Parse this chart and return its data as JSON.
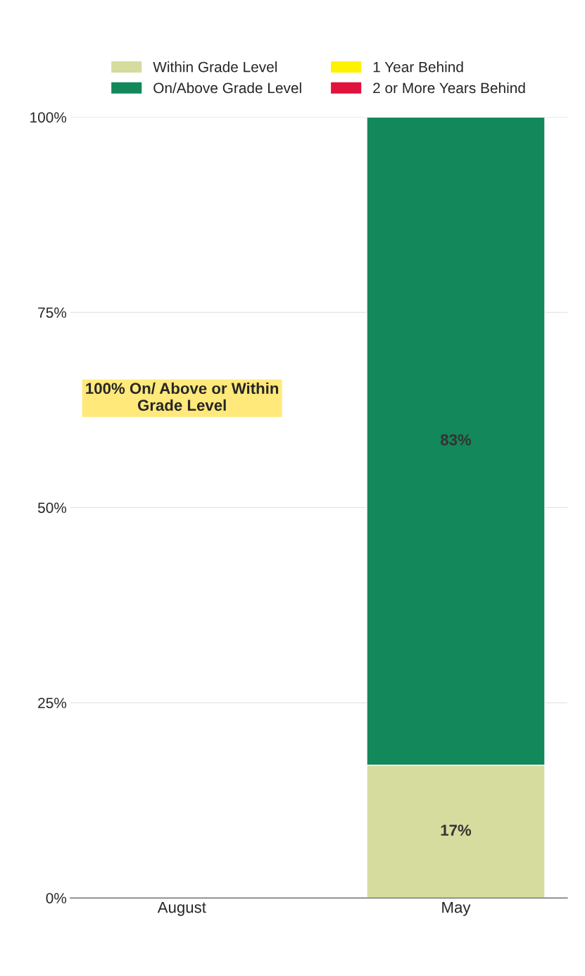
{
  "chart_data": {
    "type": "bar",
    "stacked": true,
    "categories": [
      "August",
      "May"
    ],
    "series": [
      {
        "name": "Within Grade Level",
        "color": "#d5dc9e",
        "values": [
          null,
          17
        ],
        "value_labels": [
          null,
          "17%"
        ]
      },
      {
        "name": "On/Above Grade Level",
        "color": "#13885a",
        "values": [
          null,
          83
        ],
        "value_labels": [
          null,
          "83%"
        ]
      },
      {
        "name": "1 Year Behind",
        "color": "#fff200",
        "values": [
          null,
          null
        ]
      },
      {
        "name": "2 or More Years Behind",
        "color": "#e0133c",
        "values": [
          null,
          null
        ]
      }
    ],
    "ylim": [
      0,
      100
    ],
    "yticks": [
      {
        "value": 0,
        "label": "0%"
      },
      {
        "value": 25,
        "label": "25%"
      },
      {
        "value": 50,
        "label": "50%"
      },
      {
        "value": 75,
        "label": "75%"
      },
      {
        "value": 100,
        "label": "100%"
      }
    ],
    "grid": "y",
    "legend": "top",
    "annotations": [
      "100% On/ Above or Within\nGrade Level"
    ]
  }
}
